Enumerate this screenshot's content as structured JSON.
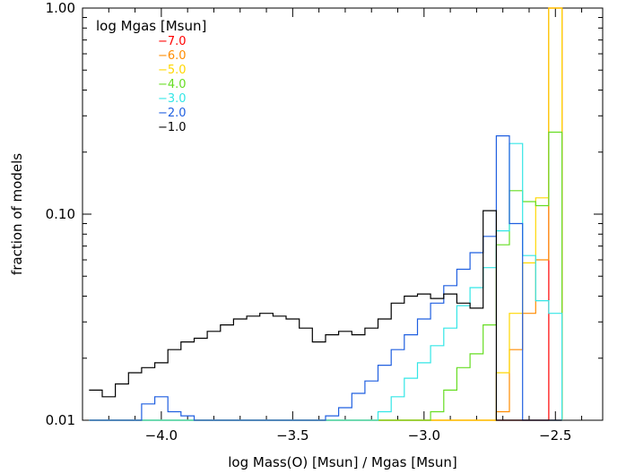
{
  "chart_data": {
    "type": "line",
    "step": true,
    "title": "",
    "xlabel": "log Mass(O) [Msun] / Mgas [Msun]",
    "ylabel": "fraction of models",
    "xlim": [
      -4.3,
      -2.32
    ],
    "ylim": [
      0.01,
      1.0
    ],
    "yscale": "log",
    "x_ticks": [
      -4.0,
      -3.5,
      -3.0,
      -2.5
    ],
    "x_tick_labels": [
      "−4.0",
      "−3.5",
      "−3.0",
      "−2.5"
    ],
    "y_ticks": [
      0.01,
      0.1,
      1.0
    ],
    "y_tick_labels": [
      "0.01",
      "0.10",
      "1.00"
    ],
    "grid": false,
    "legend": {
      "title": "log Mgas [Msun]",
      "placement": "top-left"
    },
    "bin_edges": [
      -4.275,
      -4.225,
      -4.175,
      -4.125,
      -4.075,
      -4.025,
      -3.975,
      -3.925,
      -3.875,
      -3.825,
      -3.775,
      -3.725,
      -3.675,
      -3.625,
      -3.575,
      -3.525,
      -3.475,
      -3.425,
      -3.375,
      -3.325,
      -3.275,
      -3.225,
      -3.175,
      -3.125,
      -3.075,
      -3.025,
      -2.975,
      -2.925,
      -2.875,
      -2.825,
      -2.775,
      -2.725,
      -2.675,
      -2.625,
      -2.575,
      -2.525,
      -2.475
    ],
    "series": [
      {
        "name": "7.0",
        "label": "−7.0",
        "color": "#ff0000",
        "values": [
          0,
          0,
          0,
          0,
          0,
          0,
          0,
          0,
          0,
          0,
          0,
          0,
          0,
          0,
          0,
          0,
          0,
          0,
          0,
          0,
          0,
          0,
          0,
          0,
          0,
          0,
          0,
          0,
          0,
          0,
          0,
          0,
          0,
          0,
          0,
          1.0
        ]
      },
      {
        "name": "6.0",
        "label": "−6.0",
        "color": "#ff8c00",
        "values": [
          0,
          0,
          0,
          0,
          0,
          0,
          0,
          0,
          0,
          0,
          0,
          0,
          0,
          0,
          0,
          0,
          0,
          0,
          0,
          0,
          0,
          0,
          0,
          0,
          0,
          0,
          0,
          0,
          0,
          0,
          0,
          0.011,
          0.022,
          0.033,
          0.06,
          1.0
        ]
      },
      {
        "name": "5.0",
        "label": "−5.0",
        "color": "#ffd700",
        "values": [
          0,
          0,
          0,
          0,
          0,
          0,
          0,
          0,
          0,
          0,
          0,
          0,
          0,
          0,
          0,
          0,
          0,
          0,
          0,
          0,
          0,
          0,
          0,
          0,
          0,
          0,
          0,
          0,
          0,
          0,
          0,
          0.017,
          0.033,
          0.058,
          0.12,
          1.0
        ]
      },
      {
        "name": "4.0",
        "label": "−4.0",
        "color": "#66dd22",
        "values": [
          0,
          0,
          0,
          0,
          0,
          0,
          0,
          0,
          0,
          0,
          0,
          0,
          0,
          0,
          0,
          0,
          0,
          0,
          0,
          0,
          0,
          0,
          0,
          0,
          0,
          0,
          0.011,
          0.014,
          0.018,
          0.021,
          0.029,
          0.071,
          0.13,
          0.115,
          0.11,
          0.25
        ]
      },
      {
        "name": "3.0",
        "label": "−3.0",
        "color": "#33e6e6",
        "values": [
          0,
          0,
          0,
          0,
          0,
          0,
          0,
          0,
          0,
          0,
          0,
          0,
          0,
          0,
          0,
          0,
          0,
          0,
          0,
          0,
          0,
          0,
          0.011,
          0.013,
          0.016,
          0.019,
          0.023,
          0.028,
          0.036,
          0.044,
          0.055,
          0.083,
          0.22,
          0.063,
          0.038,
          0.033
        ]
      },
      {
        "name": "2.0",
        "label": "−2.0",
        "color": "#1f5fe0",
        "values": [
          0,
          0,
          0,
          0,
          0.012,
          0.013,
          0.011,
          0.0105,
          0,
          0,
          0,
          0,
          0,
          0,
          0,
          0,
          0,
          0,
          0.0105,
          0.0115,
          0.0135,
          0.0155,
          0.0185,
          0.022,
          0.026,
          0.031,
          0.037,
          0.045,
          0.054,
          0.065,
          0.078,
          0.24,
          0.09,
          0.0,
          0.0,
          0.0
        ]
      },
      {
        "name": "1.0",
        "label": "−1.0",
        "color": "#000000",
        "values": [
          0.014,
          0.013,
          0.015,
          0.017,
          0.018,
          0.019,
          0.022,
          0.024,
          0.025,
          0.027,
          0.029,
          0.031,
          0.032,
          0.033,
          0.032,
          0.031,
          0.028,
          0.024,
          0.026,
          0.027,
          0.026,
          0.028,
          0.031,
          0.037,
          0.04,
          0.041,
          0.039,
          0.041,
          0.037,
          0.035,
          0.104,
          0.0,
          0.0,
          0.0,
          0.0,
          0.0
        ]
      }
    ]
  }
}
